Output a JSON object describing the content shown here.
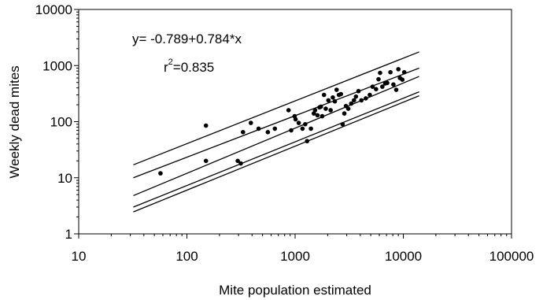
{
  "chart_data": {
    "type": "scatter",
    "xlabel": "Mite population estimated",
    "ylabel": "Weekly dead mites",
    "xscale": "log",
    "yscale": "log",
    "xlim": [
      10,
      100000
    ],
    "ylim": [
      1,
      10000
    ],
    "x_ticks": [
      "10",
      "100",
      "1000",
      "10000",
      "100000"
    ],
    "y_ticks": [
      "1",
      "10",
      "100",
      "1000",
      "10000"
    ],
    "grid": false,
    "annotations": {
      "equation": "y= -0.789+0.784*x",
      "r2_prefix": "r",
      "r2_exp": "2",
      "r2_value": "=0.835"
    },
    "regression": {
      "intercept": -0.789,
      "slope": 0.784,
      "x_range": [
        32,
        14000
      ]
    },
    "confidence_band": {
      "x_range": [
        32,
        14000
      ],
      "upper_y": [
        10,
        900
      ],
      "lower_y": [
        4.8,
        640
      ]
    },
    "prediction_band": {
      "x_range": [
        32,
        14000
      ],
      "upper_y": [
        17,
        1750
      ],
      "lower_y": [
        3,
        340
      ]
    },
    "points": [
      [
        57,
        12
      ],
      [
        150,
        20
      ],
      [
        150,
        85
      ],
      [
        295,
        20
      ],
      [
        315,
        18
      ],
      [
        330,
        65
      ],
      [
        390,
        95
      ],
      [
        460,
        75
      ],
      [
        560,
        65
      ],
      [
        650,
        75
      ],
      [
        870,
        160
      ],
      [
        920,
        70
      ],
      [
        990,
        125
      ],
      [
        1010,
        110
      ],
      [
        1080,
        95
      ],
      [
        1170,
        75
      ],
      [
        1240,
        90
      ],
      [
        1290,
        45
      ],
      [
        1400,
        75
      ],
      [
        1490,
        140
      ],
      [
        1530,
        160
      ],
      [
        1610,
        130
      ],
      [
        1680,
        180
      ],
      [
        1730,
        185
      ],
      [
        1780,
        125
      ],
      [
        1850,
        300
      ],
      [
        1920,
        170
      ],
      [
        2030,
        240
      ],
      [
        2130,
        160
      ],
      [
        2230,
        270
      ],
      [
        2330,
        230
      ],
      [
        2420,
        370
      ],
      [
        2540,
        300
      ],
      [
        2650,
        310
      ],
      [
        2750,
        90
      ],
      [
        2850,
        140
      ],
      [
        2950,
        190
      ],
      [
        3100,
        170
      ],
      [
        3300,
        210
      ],
      [
        3500,
        240
      ],
      [
        3650,
        280
      ],
      [
        3850,
        350
      ],
      [
        4100,
        240
      ],
      [
        4500,
        260
      ],
      [
        4900,
        300
      ],
      [
        5200,
        420
      ],
      [
        5600,
        380
      ],
      [
        5900,
        570
      ],
      [
        6100,
        740
      ],
      [
        6400,
        420
      ],
      [
        6800,
        480
      ],
      [
        7100,
        490
      ],
      [
        7600,
        760
      ],
      [
        8100,
        460
      ],
      [
        8600,
        370
      ],
      [
        9000,
        860
      ],
      [
        9300,
        600
      ],
      [
        9800,
        560
      ],
      [
        10200,
        760
      ]
    ]
  }
}
